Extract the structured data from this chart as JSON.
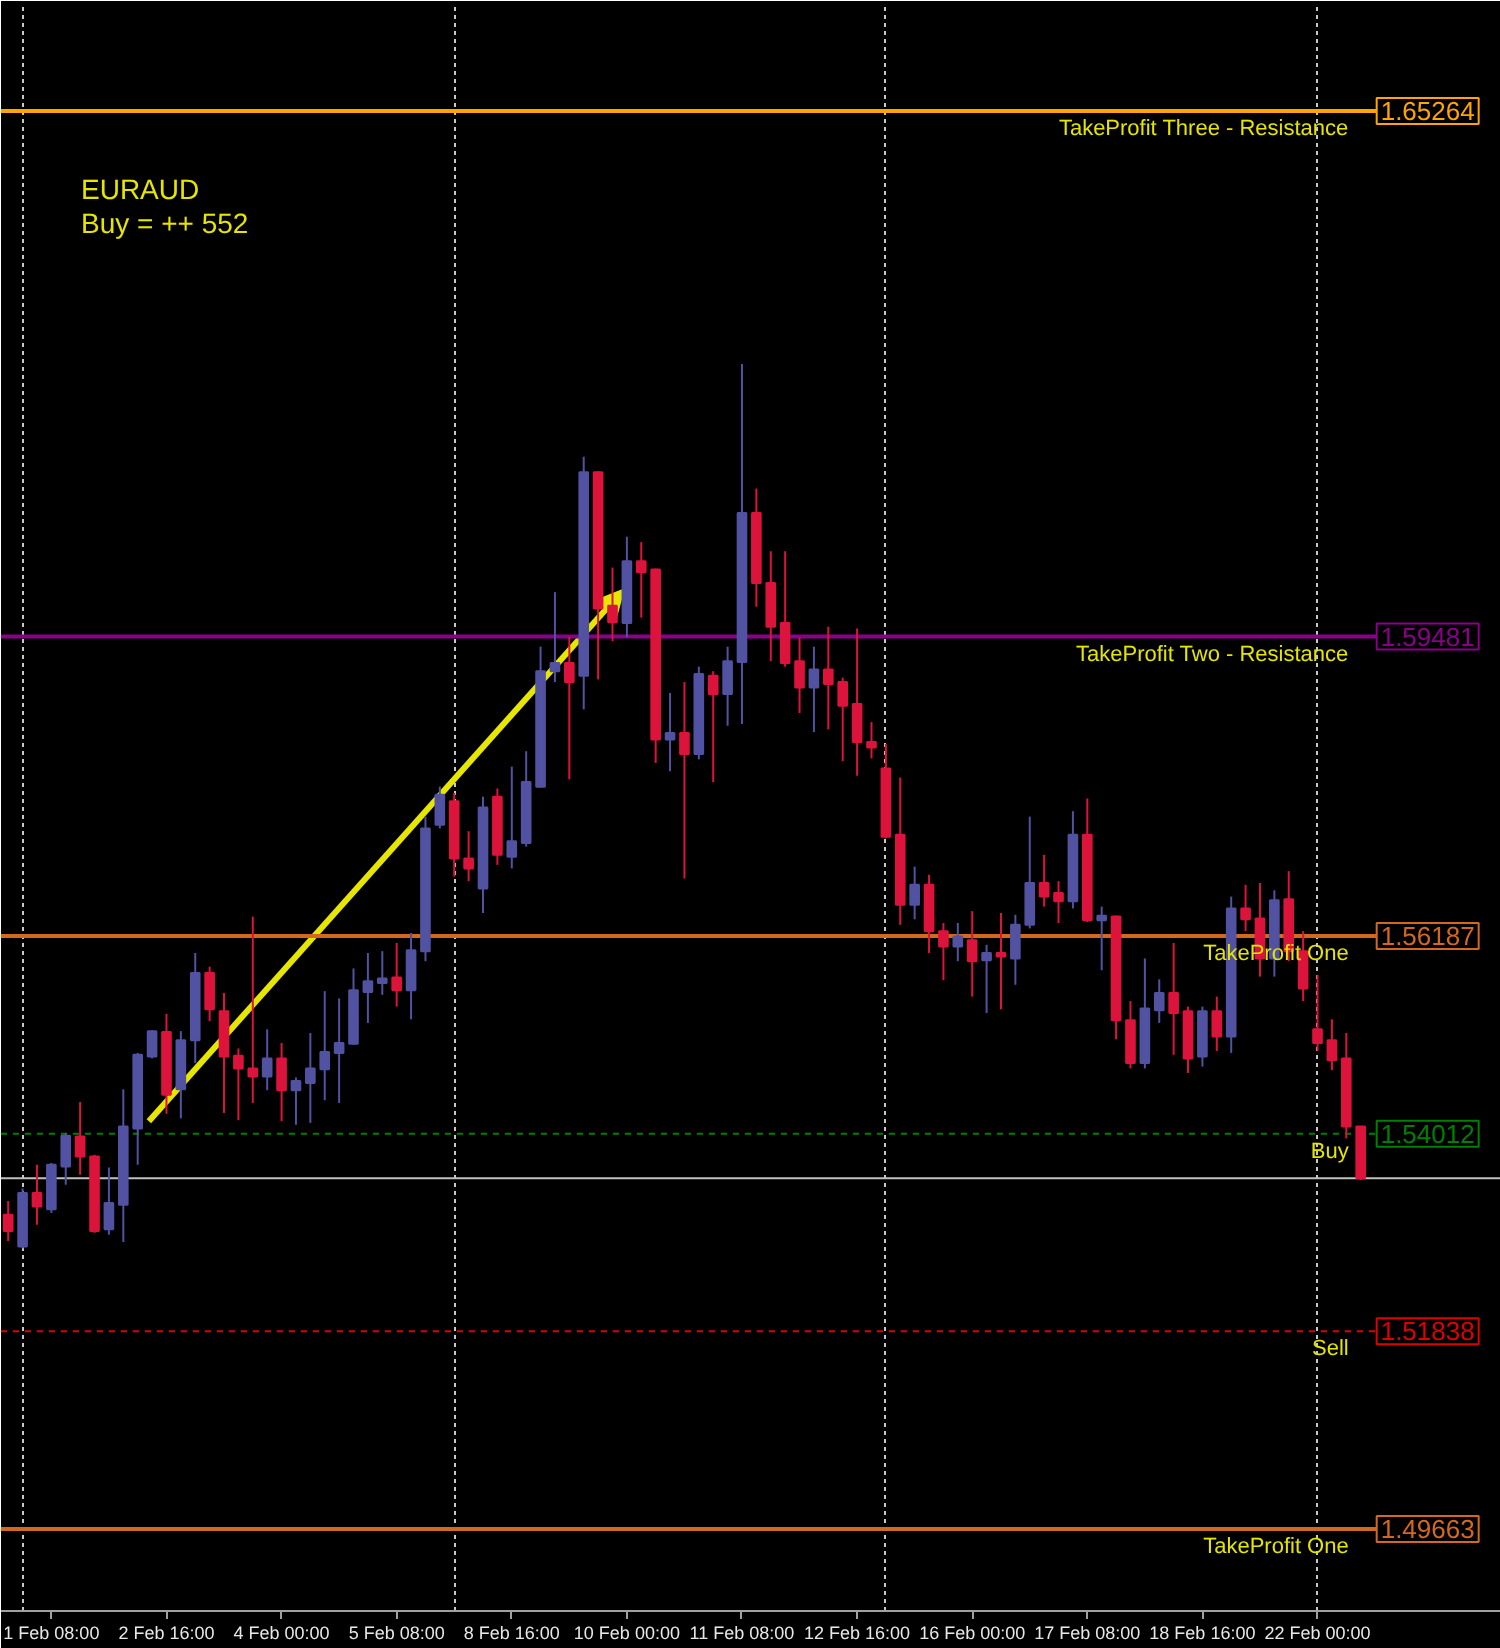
{
  "chart_data": {
    "type": "candlestick",
    "annotations": [
      "EURAUD",
      "Buy = ++ 552"
    ],
    "categories": [
      null,
      null,
      null,
      "1 Feb 08:00",
      null,
      null,
      null,
      null,
      null,
      null,
      null,
      "2 Feb 16:00",
      null,
      null,
      null,
      null,
      null,
      null,
      null,
      "4 Feb 00:00",
      null,
      null,
      null,
      null,
      null,
      null,
      null,
      "5 Feb 08:00",
      null,
      null,
      null,
      null,
      null,
      null,
      null,
      "8 Feb 16:00",
      null,
      null,
      null,
      null,
      null,
      null,
      null,
      "10 Feb 00:00",
      null,
      null,
      null,
      null,
      null,
      null,
      null,
      "11 Feb 08:00",
      null,
      null,
      null,
      null,
      null,
      null,
      null,
      "12 Feb 16:00",
      null,
      null,
      null,
      null,
      null,
      null,
      null,
      "16 Feb 00:00",
      null,
      null,
      null,
      null,
      null,
      null,
      null,
      "17 Feb 08:00",
      null,
      null,
      null,
      null,
      null,
      null,
      null,
      "18 Feb 16:00",
      null,
      null,
      null,
      null,
      null,
      null,
      null,
      "22 Feb 00:00",
      null,
      null,
      null
    ],
    "ohlc": [
      [
        1.5312,
        1.5327,
        1.5283,
        1.5294
      ],
      [
        1.5277,
        1.5341,
        1.5275,
        1.5336
      ],
      [
        1.5336,
        1.5367,
        1.5301,
        1.5321
      ],
      [
        1.5318,
        1.5369,
        1.5314,
        1.5367
      ],
      [
        1.5365,
        1.5402,
        1.5345,
        1.5399
      ],
      [
        1.5398,
        1.5436,
        1.5356,
        1.5376
      ],
      [
        1.5376,
        1.5378,
        1.5292,
        1.5294
      ],
      [
        1.5296,
        1.5364,
        1.529,
        1.5325
      ],
      [
        1.5323,
        1.545,
        1.5282,
        1.5409
      ],
      [
        1.5407,
        1.549,
        1.5367,
        1.5488
      ],
      [
        1.5486,
        1.5515,
        1.5484,
        1.5514
      ],
      [
        1.5513,
        1.5533,
        1.5423,
        1.5444
      ],
      [
        1.545,
        1.5514,
        1.5418,
        1.5504
      ],
      [
        1.5504,
        1.56,
        1.5479,
        1.5578
      ],
      [
        1.5578,
        1.5585,
        1.5525,
        1.5538
      ],
      [
        1.5536,
        1.5556,
        1.5424,
        1.5486
      ],
      [
        1.5487,
        1.5495,
        1.5416,
        1.5473
      ],
      [
        1.5473,
        1.564,
        1.5435,
        1.5464
      ],
      [
        1.5464,
        1.5516,
        1.5449,
        1.5484
      ],
      [
        1.5484,
        1.5501,
        1.5415,
        1.5449
      ],
      [
        1.5449,
        1.5463,
        1.5411,
        1.5459
      ],
      [
        1.5457,
        1.5512,
        1.5413,
        1.5473
      ],
      [
        1.5472,
        1.5558,
        1.5438,
        1.5491
      ],
      [
        1.549,
        1.555,
        1.5435,
        1.5501
      ],
      [
        1.55,
        1.5583,
        1.5499,
        1.5559
      ],
      [
        1.5557,
        1.56,
        1.5523,
        1.5569
      ],
      [
        1.5567,
        1.5602,
        1.5554,
        1.5572
      ],
      [
        1.5573,
        1.5611,
        1.5541,
        1.5559
      ],
      [
        1.5559,
        1.5622,
        1.5527,
        1.5603
      ],
      [
        1.5602,
        1.575,
        1.5591,
        1.5737
      ],
      [
        1.5741,
        1.5783,
        1.5737,
        1.5774
      ],
      [
        1.5767,
        1.5776,
        1.5684,
        1.5704
      ],
      [
        1.5704,
        1.5734,
        1.5679,
        1.5693
      ],
      [
        1.5671,
        1.5772,
        1.5644,
        1.576
      ],
      [
        1.5772,
        1.5781,
        1.5697,
        1.5708
      ],
      [
        1.5706,
        1.5805,
        1.5693,
        1.5723
      ],
      [
        1.5721,
        1.5822,
        1.5717,
        1.5788
      ],
      [
        1.5783,
        1.5937,
        1.5782,
        1.591
      ],
      [
        1.591,
        1.5997,
        1.5898,
        1.5919
      ],
      [
        1.5919,
        1.5948,
        1.5791,
        1.5898
      ],
      [
        1.5905,
        1.6146,
        1.5868,
        1.6129
      ],
      [
        1.6129,
        1.613,
        1.5901,
        1.5979
      ],
      [
        1.5982,
        1.6024,
        1.5943,
        1.5964
      ],
      [
        1.5963,
        1.6058,
        1.5947,
        1.6031
      ],
      [
        1.6031,
        1.6052,
        1.5969,
        1.6019
      ],
      [
        1.6022,
        1.6023,
        1.5809,
        1.5835
      ],
      [
        1.5835,
        1.5886,
        1.58,
        1.5842
      ],
      [
        1.5842,
        1.5898,
        1.5682,
        1.5819
      ],
      [
        1.5819,
        1.5915,
        1.5813,
        1.5907
      ],
      [
        1.5905,
        1.591,
        1.5788,
        1.5885
      ],
      [
        1.5885,
        1.5937,
        1.585,
        1.5921
      ],
      [
        1.592,
        1.6248,
        1.5852,
        1.6084
      ],
      [
        1.6084,
        1.6111,
        1.5981,
        1.6007
      ],
      [
        1.6007,
        1.6042,
        1.5921,
        1.5959
      ],
      [
        1.5963,
        1.6042,
        1.5915,
        1.5919
      ],
      [
        1.5921,
        1.5947,
        1.5864,
        1.5892
      ],
      [
        1.5892,
        1.5937,
        1.5843,
        1.5912
      ],
      [
        1.5912,
        1.5959,
        1.5846,
        1.5896
      ],
      [
        1.5898,
        1.5903,
        1.5811,
        1.5872
      ],
      [
        1.5874,
        1.5957,
        1.5795,
        1.5832
      ],
      [
        1.5832,
        1.5854,
        1.5814,
        1.5826
      ],
      [
        1.5803,
        1.583,
        1.5726,
        1.5728
      ],
      [
        1.573,
        1.5793,
        1.5631,
        1.5653
      ],
      [
        1.5653,
        1.5695,
        1.5637,
        1.5675
      ],
      [
        1.5675,
        1.5686,
        1.56,
        1.5624
      ],
      [
        1.5624,
        1.5633,
        1.557,
        1.5607
      ],
      [
        1.5607,
        1.5633,
        1.5591,
        1.5618
      ],
      [
        1.5614,
        1.5646,
        1.5552,
        1.5591
      ],
      [
        1.5592,
        1.5609,
        1.5534,
        1.56
      ],
      [
        1.56,
        1.5644,
        1.5538,
        1.5596
      ],
      [
        1.5594,
        1.5642,
        1.5565,
        1.5631
      ],
      [
        1.5631,
        1.575,
        1.5627,
        1.5677
      ],
      [
        1.5677,
        1.5708,
        1.5651,
        1.5662
      ],
      [
        1.5666,
        1.5679,
        1.5633,
        1.5657
      ],
      [
        1.5657,
        1.5756,
        1.5649,
        1.573
      ],
      [
        1.573,
        1.577,
        1.5634,
        1.5636
      ],
      [
        1.5636,
        1.5651,
        1.5581,
        1.5641
      ],
      [
        1.564,
        1.5641,
        1.5505,
        1.5526
      ],
      [
        1.5526,
        1.5547,
        1.5473,
        1.5479
      ],
      [
        1.5479,
        1.5594,
        1.5473,
        1.5539
      ],
      [
        1.5537,
        1.5571,
        1.5523,
        1.5556
      ],
      [
        1.5556,
        1.5611,
        1.5488,
        1.5534
      ],
      [
        1.5536,
        1.5541,
        1.5468,
        1.5484
      ],
      [
        1.5486,
        1.5541,
        1.5475,
        1.5536
      ],
      [
        1.5536,
        1.5552,
        1.5492,
        1.5508
      ],
      [
        1.5508,
        1.5662,
        1.549,
        1.5649
      ],
      [
        1.5649,
        1.5675,
        1.5624,
        1.5637
      ],
      [
        1.5638,
        1.5677,
        1.5574,
        1.5594
      ],
      [
        1.5594,
        1.5669,
        1.5574,
        1.5658
      ],
      [
        1.5659,
        1.569,
        1.5591,
        1.5602
      ],
      [
        1.5602,
        1.5624,
        1.5547,
        1.5561
      ],
      [
        1.5516,
        1.5576,
        1.5492,
        1.5501
      ],
      [
        1.5504,
        1.5527,
        1.5471,
        1.5482
      ],
      [
        1.5484,
        1.5512,
        1.5396,
        1.5409
      ],
      [
        1.5409,
        1.5409,
        1.535,
        1.5352
      ]
    ],
    "colors": [
      "#dc143c",
      "#5252a3",
      "#dc143c",
      "#5252a3",
      "#5252a3",
      "#dc143c",
      "#dc143c",
      "#5252a3",
      "#5252a3",
      "#5252a3",
      "#5252a3",
      "#dc143c",
      "#5252a3",
      "#5252a3",
      "#dc143c",
      "#dc143c",
      "#dc143c",
      "#dc143c",
      "#5252a3",
      "#dc143c",
      "#5252a3",
      "#5252a3",
      "#5252a3",
      "#5252a3",
      "#5252a3",
      "#5252a3",
      "#5252a3",
      "#dc143c",
      "#5252a3",
      "#5252a3",
      "#5252a3",
      "#dc143c",
      "#dc143c",
      "#5252a3",
      "#dc143c",
      "#5252a3",
      "#5252a3",
      "#5252a3",
      "#5252a3",
      "#dc143c",
      "#5252a3",
      "#dc143c",
      "#dc143c",
      "#5252a3",
      "#dc143c",
      "#dc143c",
      "#5252a3",
      "#dc143c",
      "#5252a3",
      "#dc143c",
      "#5252a3",
      "#5252a3",
      "#dc143c",
      "#dc143c",
      "#dc143c",
      "#dc143c",
      "#5252a3",
      "#dc143c",
      "#dc143c",
      "#dc143c",
      "#dc143c",
      "#dc143c",
      "#dc143c",
      "#5252a3",
      "#dc143c",
      "#dc143c",
      "#5252a3",
      "#dc143c",
      "#5252a3",
      "#dc143c",
      "#5252a3",
      "#5252a3",
      "#dc143c",
      "#dc143c",
      "#5252a3",
      "#dc143c",
      "#5252a3",
      "#dc143c",
      "#dc143c",
      "#5252a3",
      "#5252a3",
      "#dc143c",
      "#dc143c",
      "#5252a3",
      "#dc143c",
      "#5252a3",
      "#dc143c",
      "#dc143c",
      "#5252a3",
      "#dc143c",
      "#dc143c",
      "#dc143c",
      "#dc143c",
      "#dc143c",
      "#dc143c"
    ],
    "ylim": [
      1.4876,
      1.6643
    ],
    "yticks": [
      1.49663,
      1.51838,
      1.54012,
      1.56187,
      1.59481,
      1.65264
    ],
    "grid": "x",
    "ref_lines": [
      {
        "axis": "y",
        "value": 1.65264,
        "label": "TakeProfit Three - Resistance",
        "color": "#ffa500",
        "line_style": "solid"
      },
      {
        "axis": "y",
        "value": 1.59481,
        "label": "TakeProfit Two - Resistance",
        "color": "#8b008b",
        "line_style": "solid"
      },
      {
        "axis": "y",
        "value": 1.56187,
        "label": "TakeProfit One",
        "color": "#d2691e",
        "line_style": "solid"
      },
      {
        "axis": "y",
        "value": 1.54012,
        "label": "Buy",
        "color": "#008000",
        "line_style": "dashed"
      },
      {
        "axis": "y",
        "value": 1.51838,
        "label": "Sell",
        "color": "#e00000",
        "line_style": "dashed"
      },
      {
        "axis": "y",
        "value": 1.49663,
        "label": "TakeProfit One",
        "color": "#d2691e",
        "line_style": "solid"
      },
      {
        "axis": "y",
        "value": 1.5352,
        "color": "#c0c0c0",
        "line_style": "solid"
      }
    ]
  }
}
